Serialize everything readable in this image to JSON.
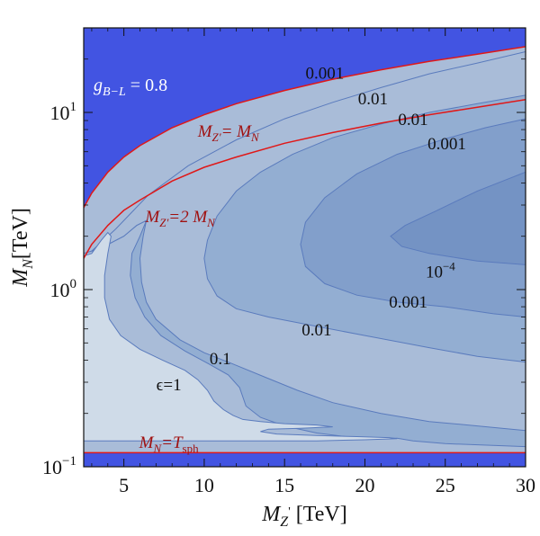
{
  "chart_data": {
    "type": "contour",
    "title": "g_{B-L} = 0.8",
    "title_parts": {
      "main": "g",
      "sub": "B−L",
      "rest": " = 0.8"
    },
    "xlabel": "M_Z' [TeV]",
    "xlabel_parts": {
      "main": "M",
      "sub": "Z",
      "prime": "'",
      "rest": " [TeV]"
    },
    "ylabel": "M_N [TeV]",
    "ylabel_parts": {
      "main": "M",
      "sub": "N",
      "rest": "[TeV]"
    },
    "xlim": [
      2.5,
      30
    ],
    "ylim": [
      0.1,
      30
    ],
    "yscale": "log",
    "x_ticks": [
      5,
      10,
      15,
      20,
      25,
      30
    ],
    "x_tick_labels": [
      "5",
      "10",
      "15",
      "20",
      "25",
      "30"
    ],
    "y_ticks": [
      0.1,
      1,
      10
    ],
    "y_tick_labels": [
      {
        "base": "10",
        "exp": "−1"
      },
      {
        "base": "10",
        "exp": "0"
      },
      {
        "base": "10",
        "exp": "1"
      }
    ],
    "colors": {
      "excluded": "#4254e2",
      "level_0_1_to_1": "#cfdbe8",
      "level_0_01_to_0_1": "#a9bcd8",
      "level_0_001_to_0_01": "#93aed2",
      "level_1e4_to_0_001": "#829fcb",
      "level_below_1e4": "#7493c4",
      "contour_line": "#5a7bbd",
      "bound_line": "#e01818"
    },
    "contour_levels": [
      "1",
      "0.1",
      "0.01",
      "0.001",
      "10^-4"
    ],
    "contour_labels": [
      {
        "text": "ϵ=1",
        "x": 7.8,
        "y": 0.27
      },
      {
        "text": "0.1",
        "x": 11.0,
        "y": 0.38
      },
      {
        "text": "0.01",
        "x": 17.0,
        "y": 0.55
      },
      {
        "text": "0.001",
        "x": 22.7,
        "y": 0.79
      },
      {
        "text": "10^-4",
        "x": 24.7,
        "y": 1.17
      },
      {
        "text": "0.001",
        "x": 17.5,
        "y": 15.5
      },
      {
        "text": "0.01",
        "x": 20.5,
        "y": 11.1
      },
      {
        "text": "0.01",
        "x": 23.0,
        "y": 8.5
      },
      {
        "text": "0.001",
        "x": 25.1,
        "y": 6.2
      }
    ],
    "contour_label_parts": [
      {
        "text": "ϵ=1"
      },
      {
        "text": "0.1"
      },
      {
        "text": "0.01"
      },
      {
        "text": "0.001"
      },
      {
        "text": "10",
        "exp": "−4"
      },
      {
        "text": "0.001"
      },
      {
        "text": "0.01"
      },
      {
        "text": "0.01"
      },
      {
        "text": "0.001"
      }
    ],
    "bound_lines": [
      {
        "name": "M_Z' = M_N",
        "relation": "M_N = M_Z'"
      },
      {
        "name": "M_Z' = 2 M_N",
        "relation": "M_N = M_Z'/2"
      },
      {
        "name": "M_N = T_sph",
        "relation": "M_N = 0.12"
      }
    ],
    "bound_labels": [
      {
        "main": "M",
        "sub": "Z'",
        "rest": "= M",
        "sub2": "N",
        "x": 11.5,
        "y": 7.3
      },
      {
        "main": "M",
        "sub": "Z'",
        "rest": "=2 M",
        "sub2": "N",
        "x": 8.5,
        "y": 2.4
      },
      {
        "main": "M",
        "sub": "N",
        "rest": "=T",
        "sub2": "sph",
        "x": 7.8,
        "y": 0.128
      }
    ]
  }
}
